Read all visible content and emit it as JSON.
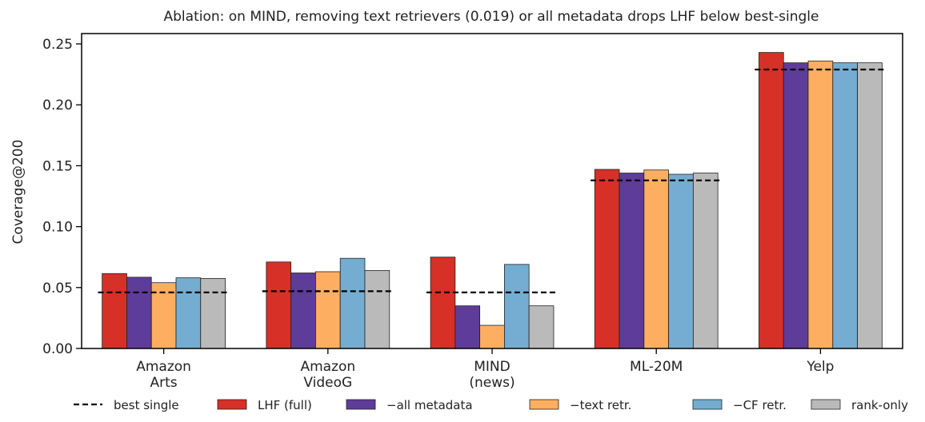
{
  "chart_data": {
    "type": "bar",
    "title": "Ablation: on MIND, removing text retrievers (0.019) or all metadata drops LHF below best-single",
    "y_label": "Coverage@200",
    "categories": [
      "Amazon\nArts",
      "Amazon\nVideoG",
      "MIND\n(news)",
      "ML-20M",
      "Yelp"
    ],
    "series": [
      {
        "name": "LHF (full)",
        "color": "#d73027",
        "values": [
          0.0615,
          0.071,
          0.075,
          0.147,
          0.243
        ]
      },
      {
        "name": "−all metadata",
        "color": "#5e3c99",
        "values": [
          0.0585,
          0.062,
          0.035,
          0.144,
          0.2345
        ]
      },
      {
        "name": "−text retr.",
        "color": "#fdae61",
        "values": [
          0.054,
          0.063,
          0.019,
          0.1465,
          0.236
        ]
      },
      {
        "name": "−CF retr.",
        "color": "#74add1",
        "values": [
          0.058,
          0.074,
          0.069,
          0.143,
          0.2345
        ]
      },
      {
        "name": "rank-only",
        "color": "#bababa",
        "values": [
          0.0575,
          0.064,
          0.035,
          0.144,
          0.2345
        ]
      }
    ],
    "reference": {
      "name": "best single",
      "color": "#000000",
      "values": [
        0.046,
        0.047,
        0.046,
        0.138,
        0.229
      ]
    },
    "ylim": [
      0,
      0.2585
    ],
    "yticks": [
      {
        "value": 0,
        "label": "0.00"
      },
      {
        "value": 0.05,
        "label": "0.05"
      },
      {
        "value": 0.1,
        "label": "0.10"
      },
      {
        "value": 0.15,
        "label": "0.15"
      },
      {
        "value": 0.2,
        "label": "0.20"
      },
      {
        "value": 0.25,
        "label": "0.25"
      }
    ]
  }
}
